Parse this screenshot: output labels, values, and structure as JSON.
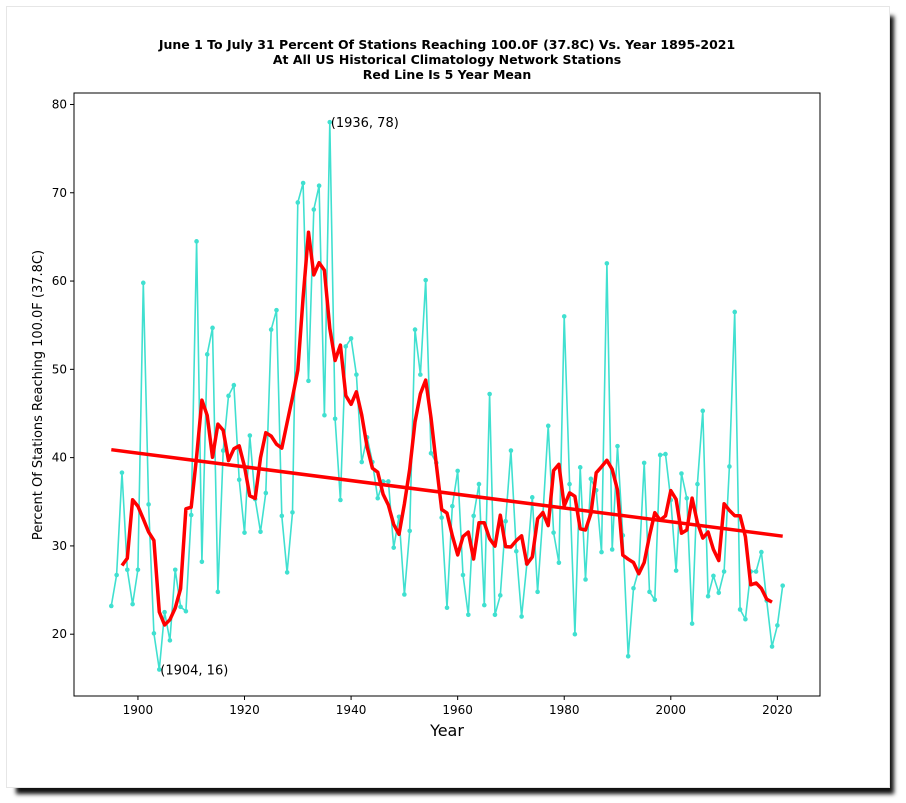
{
  "chart_data": {
    "type": "line",
    "title": [
      "June 1 To July 31 Percent Of Stations Reaching 100.0F (37.8C) Vs. Year 1895-2021",
      "At All US Historical Climatology Network Stations",
      "Red Line Is 5 Year Mean"
    ],
    "xlabel": "Year",
    "ylabel": "Percent Of Stations Reaching 100.0F (37.8C)",
    "xlim": [
      1888,
      2028
    ],
    "ylim": [
      13,
      81.3
    ],
    "xticks": [
      1900,
      1920,
      1940,
      1960,
      1980,
      2000,
      2020
    ],
    "yticks": [
      20,
      30,
      40,
      50,
      60,
      70,
      80
    ],
    "grid": false,
    "colors": {
      "data": "#40e0d0",
      "mean": "#ff0000",
      "trend": "#ff0000"
    },
    "series": [
      {
        "name": "Percent of stations reaching 100F",
        "start_year": 1895,
        "values": [
          23.2,
          26.7,
          38.3,
          27.3,
          23.4,
          27.3,
          59.8,
          34.7,
          20.1,
          16,
          22.5,
          19.3,
          27.3,
          23.1,
          22.6,
          33.5,
          64.5,
          28.2,
          51.7,
          54.7,
          24.8,
          40.8,
          47,
          48.2,
          37.5,
          31.5,
          42.5,
          35.3,
          31.6,
          36,
          54.5,
          56.7,
          33.4,
          27,
          33.8,
          68.9,
          71.1,
          48.7,
          68.1,
          70.8,
          44.8,
          78,
          44.4,
          35.2,
          52.6,
          53.5,
          49.4,
          39.5,
          42.3,
          39.5,
          35.4,
          37.3,
          37.3,
          29.8,
          33.3,
          24.5,
          31.7,
          54.5,
          49.4,
          60.1,
          40.5,
          39.4,
          33.2,
          23,
          34.5,
          38.5,
          26.7,
          22.2,
          33.4,
          37,
          23.3,
          47.2,
          22.2,
          24.4,
          32.8,
          40.8,
          29.4,
          22,
          28,
          35.5,
          24.8,
          33.5,
          43.6,
          31.5,
          28.1,
          56,
          37,
          20,
          38.9,
          26.2,
          37.6,
          36.3,
          29.3,
          62,
          29.6,
          41.3,
          31.2,
          17.5,
          25.2,
          27.3,
          39.4,
          24.8,
          23.9,
          40.3,
          40.4,
          35.2,
          27.2,
          38.2,
          35.4,
          21.2,
          37,
          45.3,
          24.3,
          26.6,
          24.7,
          27.1,
          39,
          56.5,
          22.8,
          21.7,
          27.1,
          27.1,
          29.3,
          23.8,
          18.6,
          21,
          25.5
        ]
      },
      {
        "name": "5 Year Mean",
        "window": 5
      },
      {
        "name": "Linear trend",
        "x": [
          1895,
          2021
        ],
        "y": [
          40.9,
          31.1
        ]
      }
    ],
    "annotations": [
      {
        "text": "(1936, 78)",
        "x": 1936,
        "y": 78
      },
      {
        "text": "(1904, 16)",
        "x": 1904,
        "y": 16
      }
    ]
  }
}
